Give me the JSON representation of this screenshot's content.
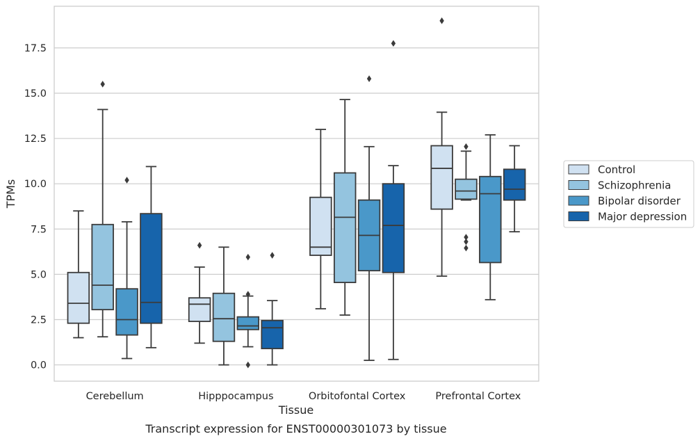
{
  "chart_data": {
    "type": "boxplot",
    "caption": "Transcript expression for ENST00000301073 by tissue",
    "xlabel": "Tissue",
    "ylabel": "TPMs",
    "ylim": [
      -0.9,
      19.8
    ],
    "yticks": [
      0.0,
      2.5,
      5.0,
      7.5,
      10.0,
      12.5,
      15.0,
      17.5
    ],
    "ytick_labels": [
      "0.0",
      "2.5",
      "5.0",
      "7.5",
      "10.0",
      "12.5",
      "15.0",
      "17.5"
    ],
    "grid": "horizontal",
    "legend_position": "right",
    "categories": [
      "Cerebellum",
      "Hipppocampus",
      "Orbitofontal Cortex",
      "Prefrontal Cortex"
    ],
    "series": [
      {
        "name": "Control",
        "color": "#d0e1f1",
        "boxes": [
          {
            "whislo": 1.5,
            "q1": 2.3,
            "med": 3.4,
            "q3": 5.1,
            "whishi": 8.5,
            "fliers": []
          },
          {
            "whislo": 1.2,
            "q1": 2.4,
            "med": 3.35,
            "q3": 3.7,
            "whishi": 5.4,
            "fliers": [
              6.6
            ]
          },
          {
            "whislo": 3.1,
            "q1": 6.05,
            "med": 6.5,
            "q3": 9.25,
            "whishi": 13.0,
            "fliers": []
          },
          {
            "whislo": 4.9,
            "q1": 8.6,
            "med": 10.85,
            "q3": 12.1,
            "whishi": 13.95,
            "fliers": [
              19.0
            ]
          }
        ]
      },
      {
        "name": "Schizophrenia",
        "color": "#94c4df",
        "boxes": [
          {
            "whislo": 1.55,
            "q1": 3.05,
            "med": 4.4,
            "q3": 7.75,
            "whishi": 14.1,
            "fliers": [
              15.5
            ]
          },
          {
            "whislo": 0.0,
            "q1": 1.3,
            "med": 2.55,
            "q3": 3.95,
            "whishi": 6.5,
            "fliers": []
          },
          {
            "whislo": 2.75,
            "q1": 4.55,
            "med": 8.15,
            "q3": 10.6,
            "whishi": 14.65,
            "fliers": []
          },
          {
            "whislo": 9.1,
            "q1": 9.15,
            "med": 9.6,
            "q3": 10.25,
            "whishi": 11.8,
            "fliers": [
              12.05,
              7.05,
              6.8,
              6.45
            ]
          }
        ]
      },
      {
        "name": "Bipolar disorder",
        "color": "#4a98c9",
        "boxes": [
          {
            "whislo": 0.35,
            "q1": 1.65,
            "med": 2.5,
            "q3": 4.2,
            "whishi": 7.9,
            "fliers": [
              10.2
            ]
          },
          {
            "whislo": 1.0,
            "q1": 1.95,
            "med": 2.15,
            "q3": 2.65,
            "whishi": 3.8,
            "fliers": [
              3.9,
              5.95,
              0.0
            ]
          },
          {
            "whislo": 0.25,
            "q1": 5.2,
            "med": 7.15,
            "q3": 9.1,
            "whishi": 12.05,
            "fliers": [
              15.8
            ]
          },
          {
            "whislo": 3.6,
            "q1": 5.65,
            "med": 9.45,
            "q3": 10.4,
            "whishi": 12.7,
            "fliers": []
          }
        ]
      },
      {
        "name": "Major depression",
        "color": "#1764ab",
        "boxes": [
          {
            "whislo": 0.95,
            "q1": 2.3,
            "med": 3.45,
            "q3": 8.35,
            "whishi": 10.95,
            "fliers": []
          },
          {
            "whislo": 0.0,
            "q1": 0.9,
            "med": 2.05,
            "q3": 2.45,
            "whishi": 3.55,
            "fliers": [
              6.05
            ]
          },
          {
            "whislo": 0.3,
            "q1": 5.1,
            "med": 7.7,
            "q3": 10.0,
            "whishi": 11.0,
            "fliers": [
              17.75
            ]
          },
          {
            "whislo": 7.35,
            "q1": 9.1,
            "med": 9.7,
            "q3": 10.8,
            "whishi": 12.1,
            "fliers": []
          }
        ]
      }
    ]
  }
}
